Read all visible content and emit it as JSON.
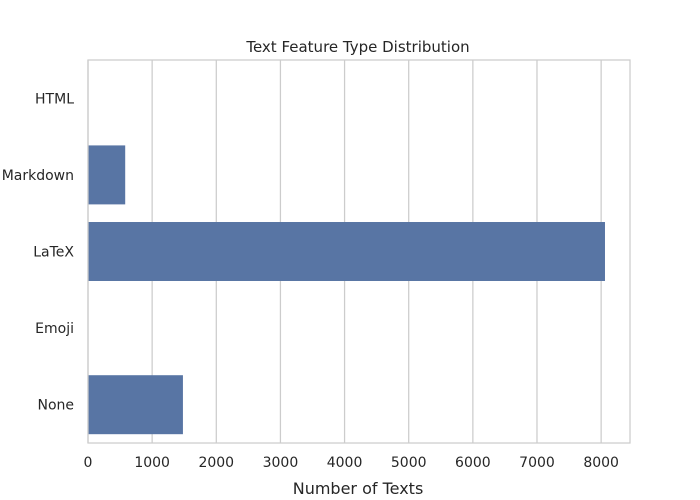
{
  "chart_data": {
    "type": "bar",
    "orientation": "horizontal",
    "title": "Text Feature Type Distribution",
    "xlabel": "Number of Texts",
    "ylabel": "",
    "categories": [
      "HTML",
      "Markdown",
      "LaTeX",
      "Emoji",
      "None"
    ],
    "values": [
      0,
      580,
      8060,
      0,
      1480
    ],
    "xlim": [
      0,
      8450
    ],
    "xticks": [
      0,
      1000,
      2000,
      3000,
      4000,
      5000,
      6000,
      7000,
      8000
    ],
    "grid": true,
    "legend": "none",
    "bar_color": "#5875a4"
  }
}
